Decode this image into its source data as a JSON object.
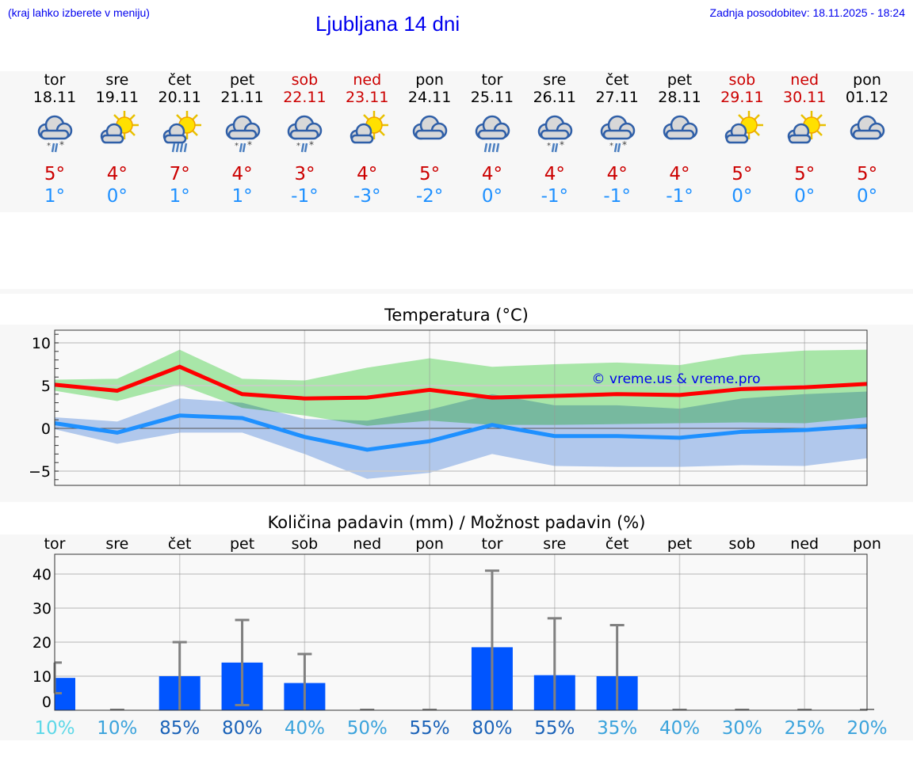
{
  "header": {
    "hint": "(kraj lahko izberete v meniju)",
    "title": "Ljubljana 14 dni",
    "updated": "Zadnja posodobitev: 18.11.2025 - 18:24"
  },
  "days": [
    {
      "name": "tor",
      "date": "18.11",
      "icon": "cloud-sleet-icon",
      "tmax": "5°",
      "tmin": "1°",
      "weekend": false
    },
    {
      "name": "sre",
      "date": "19.11",
      "icon": "sun-cloud-icon",
      "tmax": "4°",
      "tmin": "0°",
      "weekend": false
    },
    {
      "name": "čet",
      "date": "20.11",
      "icon": "sun-cloud-rain-icon",
      "tmax": "7°",
      "tmin": "1°",
      "weekend": false
    },
    {
      "name": "pet",
      "date": "21.11",
      "icon": "cloud-sleet-icon",
      "tmax": "4°",
      "tmin": "1°",
      "weekend": false
    },
    {
      "name": "sob",
      "date": "22.11",
      "icon": "cloud-sleet-icon",
      "tmax": "3°",
      "tmin": "-1°",
      "weekend": true
    },
    {
      "name": "ned",
      "date": "23.11",
      "icon": "sun-cloud-icon",
      "tmax": "4°",
      "tmin": "-3°",
      "weekend": true
    },
    {
      "name": "pon",
      "date": "24.11",
      "icon": "cloud-icon",
      "tmax": "5°",
      "tmin": "-2°",
      "weekend": false
    },
    {
      "name": "tor",
      "date": "25.11",
      "icon": "cloud-rain-icon",
      "tmax": "4°",
      "tmin": "0°",
      "weekend": false
    },
    {
      "name": "sre",
      "date": "26.11",
      "icon": "cloud-sleet-icon",
      "tmax": "4°",
      "tmin": "-1°",
      "weekend": false
    },
    {
      "name": "čet",
      "date": "27.11",
      "icon": "cloud-sleet-icon",
      "tmax": "4°",
      "tmin": "-1°",
      "weekend": false
    },
    {
      "name": "pet",
      "date": "28.11",
      "icon": "cloud-icon",
      "tmax": "4°",
      "tmin": "-1°",
      "weekend": false
    },
    {
      "name": "sob",
      "date": "29.11",
      "icon": "sun-cloud-icon",
      "tmax": "5°",
      "tmin": "0°",
      "weekend": true
    },
    {
      "name": "ned",
      "date": "30.11",
      "icon": "sun-cloud-icon",
      "tmax": "5°",
      "tmin": "0°",
      "weekend": true
    },
    {
      "name": "pon",
      "date": "01.12",
      "icon": "cloud-icon",
      "tmax": "5°",
      "tmin": "0°",
      "weekend": false
    }
  ],
  "colors": {
    "max": "#ff0000",
    "min": "#1e90ff",
    "max_band": "#a8e6a8",
    "min_band": "#a8c4f0",
    "bar": "#0055ff",
    "errorbar": "#808080",
    "watermark": "#0000ee"
  },
  "chart_data": [
    {
      "type": "line",
      "title": "Temperatura (°C)",
      "ylim": [
        -6.8,
        11.3
      ],
      "yticks": [
        "10",
        "5",
        "0",
        "−5"
      ],
      "ytick_values": [
        10,
        5,
        0,
        -5
      ],
      "grid": true,
      "watermark": "© vreme.us & vreme.pro",
      "x": [
        "18.11",
        "19.11",
        "20.11",
        "21.11",
        "22.11",
        "23.11",
        "24.11",
        "25.11",
        "26.11",
        "27.11",
        "28.11",
        "29.11",
        "30.11",
        "01.12"
      ],
      "series": [
        {
          "key": "max",
          "values": [
            5.1,
            4.4,
            7.2,
            4.0,
            3.5,
            3.6,
            4.5,
            3.6,
            3.8,
            4.0,
            3.9,
            4.6,
            4.8,
            5.2
          ],
          "band_low": [
            4.4,
            3.2,
            5.1,
            2.4,
            1.5,
            0.3,
            0.9,
            0.4,
            0.4,
            0.5,
            0.6,
            0.7,
            0.6,
            1.3
          ],
          "band_high": [
            5.7,
            5.8,
            9.2,
            5.8,
            5.6,
            7.1,
            8.2,
            7.2,
            7.5,
            7.7,
            7.4,
            8.6,
            9.1,
            9.2
          ]
        },
        {
          "key": "min",
          "values": [
            0.6,
            -0.5,
            1.5,
            1.2,
            -1.0,
            -2.5,
            -1.5,
            0.4,
            -0.9,
            -0.9,
            -1.1,
            -0.4,
            -0.2,
            0.3
          ],
          "band_low": [
            -0.1,
            -1.8,
            -0.5,
            -0.5,
            -3.0,
            -5.9,
            -5.2,
            -3.0,
            -4.4,
            -4.5,
            -4.5,
            -4.3,
            -4.4,
            -3.5
          ],
          "band_high": [
            1.3,
            0.8,
            3.5,
            3.0,
            1.1,
            0.9,
            2.2,
            4.0,
            2.7,
            2.7,
            2.3,
            3.5,
            4.0,
            4.3
          ]
        }
      ]
    },
    {
      "type": "bar",
      "title": "Količina padavin (mm) / Možnost padavin (%)",
      "ylim": [
        0,
        45
      ],
      "yticks": [
        "40",
        "30",
        "20",
        "10",
        "0"
      ],
      "ytick_values": [
        40,
        30,
        20,
        10,
        0
      ],
      "grid": true,
      "categories": [
        "tor",
        "sre",
        "čet",
        "pet",
        "sob",
        "ned",
        "pon",
        "tor",
        "sre",
        "čet",
        "pet",
        "sob",
        "ned",
        "pon"
      ],
      "values": [
        9.5,
        0,
        10,
        14,
        8,
        0,
        0,
        18.5,
        10.3,
        10,
        0,
        0,
        0,
        0
      ],
      "err_low": [
        5,
        0,
        0,
        1.5,
        0,
        0,
        0,
        0,
        0,
        0,
        0,
        0,
        0,
        0
      ],
      "err_high": [
        14,
        0,
        20,
        26.5,
        16.5,
        0,
        0,
        41,
        27,
        25,
        0,
        0,
        0,
        0
      ],
      "probability": [
        "10%",
        "10%",
        "85%",
        "80%",
        "40%",
        "50%",
        "55%",
        "80%",
        "55%",
        "35%",
        "40%",
        "30%",
        "25%",
        "20%"
      ],
      "probability_colors": [
        "#5dd8e8",
        "#3ba3dc",
        "#1a62b8",
        "#1a62b8",
        "#3ba3dc",
        "#3ba3dc",
        "#1a62b8",
        "#1a62b8",
        "#1a62b8",
        "#3ba3dc",
        "#3ba3dc",
        "#3ba3dc",
        "#3ba3dc",
        "#3ba3dc"
      ]
    }
  ]
}
